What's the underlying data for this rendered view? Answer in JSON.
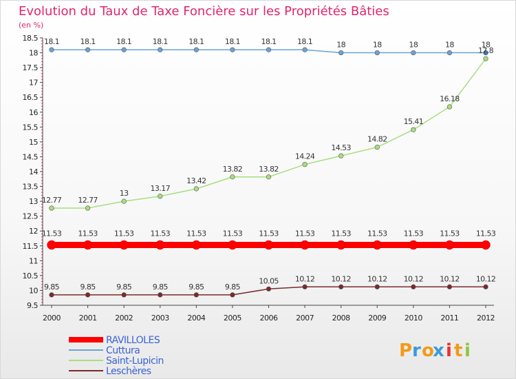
{
  "chart_data": {
    "type": "line",
    "title": "Evolution du Taux de Taxe Foncière sur les Propriétés Bâties",
    "unit_label": "(en %)",
    "xlabel": "",
    "ylabel": "",
    "categories": [
      "2000",
      "2001",
      "2002",
      "2003",
      "2004",
      "2005",
      "2006",
      "2007",
      "2008",
      "2009",
      "2010",
      "2011",
      "2012"
    ],
    "ylim": [
      9.5,
      18.5
    ],
    "yticks": [
      "9.5",
      "10",
      "10.5",
      "11",
      "11.5",
      "12",
      "12.5",
      "13",
      "13.5",
      "14",
      "14.5",
      "15",
      "15.5",
      "16",
      "16.5",
      "17",
      "17.5",
      "18",
      "18.5"
    ],
    "grid": false,
    "legend_position": "bottom-left",
    "series": [
      {
        "name": "RAVILLOLES",
        "color": "#ff0000",
        "emphasis": true,
        "values": [
          11.53,
          11.53,
          11.53,
          11.53,
          11.53,
          11.53,
          11.53,
          11.53,
          11.53,
          11.53,
          11.53,
          11.53,
          11.53
        ],
        "labels": [
          "11.53",
          "11.53",
          "11.53",
          "11.53",
          "11.53",
          "11.53",
          "11.53",
          "11.53",
          "11.53",
          "11.53",
          "11.53",
          "11.53",
          "11.53"
        ]
      },
      {
        "name": "Cuttura",
        "color": "#6ba3d6",
        "values": [
          18.1,
          18.1,
          18.1,
          18.1,
          18.1,
          18.1,
          18.1,
          18.1,
          18,
          18,
          18,
          18,
          18
        ],
        "labels": [
          "18.1",
          "18.1",
          "18.1",
          "18.1",
          "18.1",
          "18.1",
          "18.1",
          "18.1",
          "18",
          "18",
          "18",
          "18",
          "18"
        ]
      },
      {
        "name": "Saint-Lupicin",
        "color": "#a8de7f",
        "values": [
          12.77,
          12.77,
          13,
          13.17,
          13.42,
          13.82,
          13.82,
          14.24,
          14.53,
          14.82,
          15.41,
          16.18,
          17.8
        ],
        "labels": [
          "12.77",
          "12.77",
          "13",
          "13.17",
          "13.42",
          "13.82",
          "13.82",
          "14.24",
          "14.53",
          "14.82",
          "15.41",
          "16.18",
          "17.8"
        ]
      },
      {
        "name": "Leschères",
        "color": "#7a2a2a",
        "values": [
          9.85,
          9.85,
          9.85,
          9.85,
          9.85,
          9.85,
          10.05,
          10.12,
          10.12,
          10.12,
          10.12,
          10.12,
          10.12
        ],
        "labels": [
          "9.85",
          "9.85",
          "9.85",
          "9.85",
          "9.85",
          "9.85",
          "10.05",
          "10.12",
          "10.12",
          "10.12",
          "10.12",
          "10.12",
          "10.12"
        ]
      }
    ]
  },
  "branding": {
    "logo_letters": [
      "P",
      "r",
      "o",
      "x",
      "i",
      "t",
      "i"
    ],
    "logo_colors": [
      "#f29a1a",
      "#3c9bd9",
      "#f29a1a",
      "#3c9bd9",
      "#e9312b",
      "#f29a1a",
      "#8cc63e"
    ]
  }
}
